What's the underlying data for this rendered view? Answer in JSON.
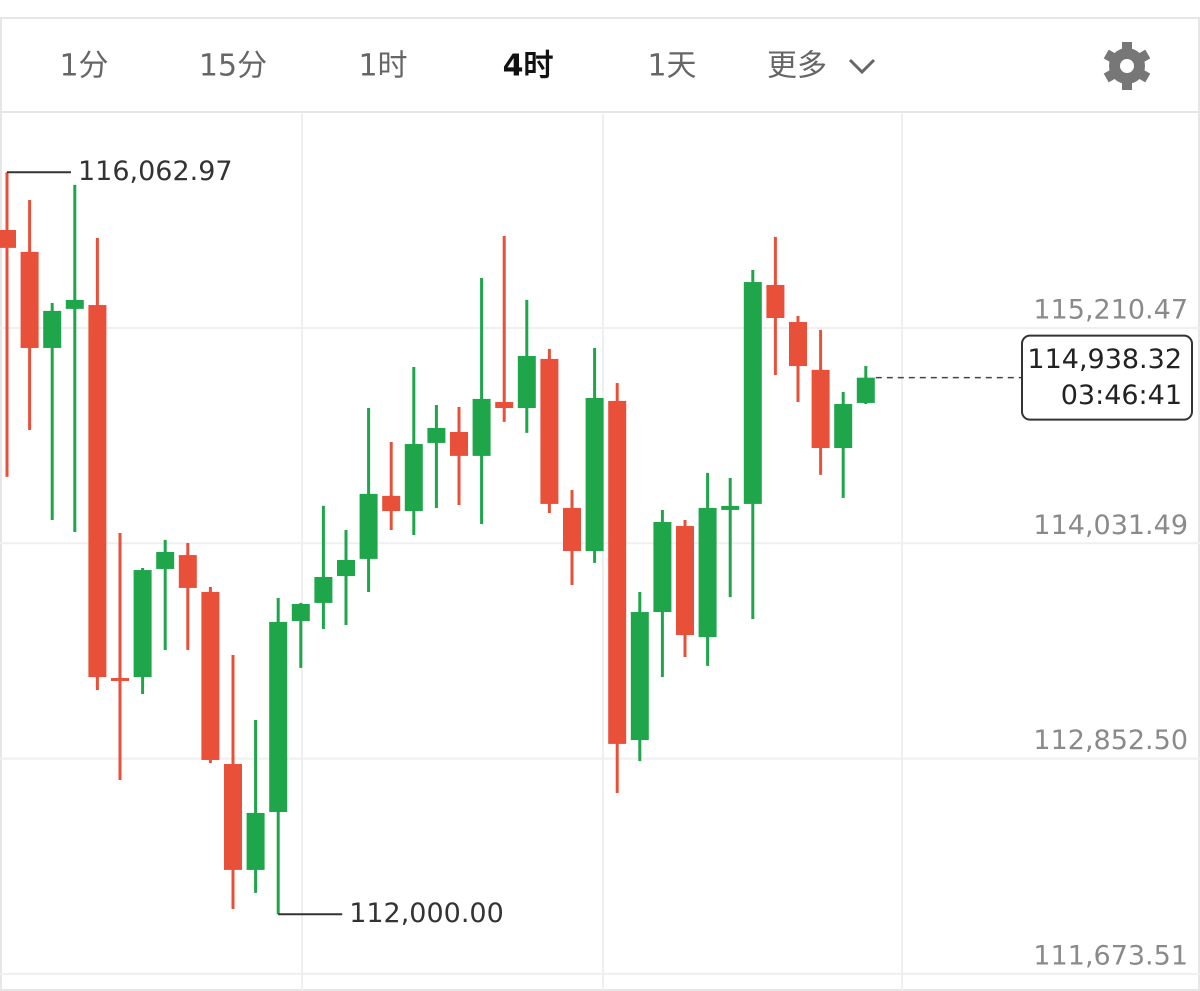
{
  "toolbar": {
    "tabs": [
      "1分",
      "15分",
      "1时",
      "4时",
      "1天",
      "更多"
    ],
    "active": 3
  },
  "chart_data": {
    "type": "candlestick",
    "up_color": "#1fa64a",
    "down_color": "#e9503a",
    "grid": true,
    "ylim": [
      111580,
      116393
    ],
    "yticks": [
      {
        "value": 111673.51,
        "label": "111,673.51"
      },
      {
        "value": 112852.5,
        "label": "112,852.50"
      },
      {
        "value": 114031.49,
        "label": "114,031.49"
      },
      {
        "value": 115210.47,
        "label": "115,210.47"
      }
    ],
    "open": [
      115747,
      115627,
      115101,
      115315,
      115336,
      113294,
      113299,
      113891,
      113967,
      113765,
      112823,
      112243,
      112560,
      113606,
      113705,
      113852,
      113946,
      114291,
      114208,
      114581,
      114641,
      114510,
      114805,
      114772,
      115041,
      114225,
      113989,
      114811,
      112954,
      113655,
      114126,
      113518,
      114214,
      114247,
      115446,
      115243,
      114981,
      114553,
      114800
    ],
    "high": [
      116062.97,
      115911,
      115347,
      115994,
      115703,
      114088,
      113896,
      114050,
      114033,
      113792,
      113420,
      113064,
      113732,
      113705,
      114236,
      114104,
      114772,
      114586,
      114997,
      114789,
      114778,
      115484,
      115714,
      115364,
      115096,
      114323,
      115101,
      114909,
      113765,
      114214,
      114159,
      114417,
      114389,
      115528,
      115709,
      115276,
      115200,
      114860,
      115002
    ],
    "low": [
      114395,
      114652,
      114159,
      114093,
      113228,
      112735,
      113206,
      113447,
      113447,
      112828,
      112029,
      112117,
      112000,
      113349,
      113562,
      113584,
      113765,
      114104,
      114077,
      114225,
      114241,
      114137,
      114696,
      114636,
      114197,
      113803,
      113924,
      112664,
      112839,
      113299,
      113409,
      113360,
      113737,
      113617,
      114953,
      114805,
      114406,
      114280,
      114794
    ],
    "close": [
      115649,
      115101,
      115304,
      115364,
      113299,
      113283,
      113885,
      113984,
      113787,
      112845,
      112243,
      112555,
      113601,
      113699,
      113847,
      113940,
      114302,
      114208,
      114575,
      114663,
      114510,
      114822,
      114772,
      115057,
      114247,
      113989,
      114827,
      112933,
      113655,
      114148,
      113529,
      114225,
      114236,
      115462,
      115265,
      115002,
      114553,
      114794,
      114938.32
    ],
    "annotations": [
      {
        "value": 116062.97,
        "label": "116,062.97"
      },
      {
        "value": 112000.0,
        "label": "112,000.00"
      }
    ],
    "last_price": {
      "value": 114938.32,
      "label": "114,938.32"
    },
    "countdown": "03:46:41"
  }
}
